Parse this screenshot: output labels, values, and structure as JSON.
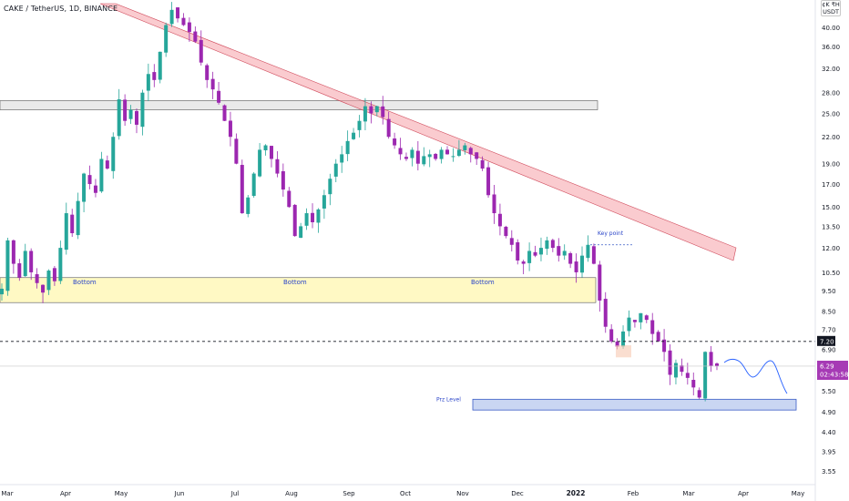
{
  "header": {
    "title": "CAKE / TetherUS, 1D, BINANCE",
    "currency_top": "¢K ₹H",
    "currency": "USDT"
  },
  "colors": {
    "bull": "#26a69a",
    "bear": "#9c27b0",
    "resistance_band": "#f5a0a8",
    "top_zone": "#d8d8d8",
    "bottom_zone": "#fff9c4",
    "prz_zone": "#c9d6f2",
    "label": "#2a45c8",
    "last_price": "#a63ab5",
    "dashed_level": "#131722"
  },
  "chart_data": {
    "type": "candlestick",
    "title": "CAKE / TetherUS, 1D, BINANCE",
    "y_scale": "log",
    "ylim": [
      3.3,
      45
    ],
    "x_ticks": [
      "Mar",
      "Apr",
      "May",
      "Jun",
      "Jul",
      "Aug",
      "Sep",
      "Oct",
      "Nov",
      "Dec",
      "2022",
      "Feb",
      "Mar",
      "Apr",
      "May"
    ],
    "y_ticks": [
      "40.00",
      "36.00",
      "32.00",
      "28.00",
      "25.00",
      "22.00",
      "19.00",
      "17.00",
      "15.00",
      "13.50",
      "12.00",
      "10.50",
      "9.50",
      "8.50",
      "7.70",
      "6.90",
      "5.50",
      "4.90",
      "4.40",
      "3.95",
      "3.55"
    ],
    "last_price": "6.29",
    "countdown": "02:43:58",
    "dashed_level": "7.20",
    "zones": [
      {
        "name": "Bottom",
        "low": 8.9,
        "high": 10.2
      },
      {
        "name": "Prz Level",
        "low": 4.95,
        "high": 5.25
      },
      {
        "name": "",
        "low": 25.5,
        "high": 26.8
      }
    ],
    "labels": {
      "bottom": "Bottom",
      "key_point": "Key point",
      "prz": "Prz Level"
    },
    "closes": [
      9.6,
      12.5,
      11.0,
      10.2,
      11.8,
      10.5,
      9.9,
      9.4,
      10.6,
      10.0,
      12.0,
      14.5,
      13.0,
      15.5,
      18.0,
      17.0,
      16.2,
      19.5,
      18.5,
      22.0,
      27.0,
      24.0,
      25.5,
      23.5,
      28.0,
      31.0,
      30.0,
      35.0,
      40.5,
      44.0,
      42.0,
      40.5,
      39.0,
      37.0,
      33.0,
      30.0,
      28.5,
      26.5,
      24.0,
      22.0,
      19.0,
      14.5,
      15.8,
      18.0,
      20.5,
      21.0,
      19.5,
      18.0,
      16.5,
      15.0,
      12.8,
      13.5,
      14.5,
      13.8,
      14.8,
      16.0,
      17.5,
      19.0,
      20.0,
      21.5,
      22.5,
      24.0,
      26.0,
      25.0,
      26.0,
      24.5,
      22.0,
      21.0,
      20.0,
      19.5,
      20.5,
      19.0,
      19.8,
      20.0,
      19.5,
      20.5,
      20.0,
      19.8,
      20.5,
      21.0,
      20.0,
      19.5,
      18.5,
      16.0,
      14.5,
      13.5,
      12.8,
      12.2,
      11.2,
      11.0,
      11.8,
      11.5,
      12.0,
      12.5,
      12.0,
      11.5,
      11.8,
      11.0,
      10.5,
      11.5,
      12.2,
      11.0,
      9.0,
      7.8,
      7.2,
      7.0,
      7.6,
      8.2,
      8.0,
      8.4,
      8.1,
      7.5,
      7.2,
      6.8,
      6.0,
      6.4,
      6.1,
      5.9,
      5.6,
      5.3,
      6.8,
      6.3,
      6.29
    ],
    "projection": "wave to Prz Level"
  }
}
